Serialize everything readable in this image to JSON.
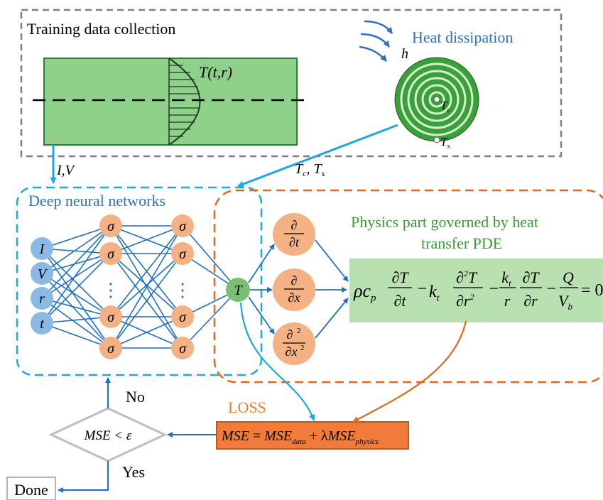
{
  "training": {
    "title": "Training data collection",
    "temp_profile": "T(t,r)",
    "inputs_IV": "I,V",
    "heat_label": "Heat dissipation",
    "h_label": "h",
    "core_label": "T",
    "core_sub": "c",
    "surface_label": "T",
    "surface_sub": "s",
    "tcts_a": "T",
    "tcts_a_sub": "c",
    "tcts_sep": ", T",
    "tcts_b_sub": "s"
  },
  "dnn": {
    "title": "Deep neural networks",
    "inputs": [
      "I",
      "V",
      "r",
      "t"
    ],
    "neuron_symbol": "σ",
    "ellipsis": "⋮",
    "output": "T"
  },
  "physics": {
    "title_line1": "Physics part governed by heat",
    "title_line2": "transfer PDE",
    "partial": "∂",
    "d_t": "∂t",
    "d_x": "∂x",
    "d_x2": "∂x",
    "d_x2_sup": "2",
    "pde": {
      "rho_c": "ρc",
      "p_sub": "p",
      "dT": "∂T",
      "dt": "∂t",
      "minus": "−",
      "kt": "k",
      "t_sub": "t",
      "d2T_num": "∂",
      "d2T_sup": "2",
      "d2T_T": "T",
      "dr2": "∂r",
      "dr2_sup": "2",
      "r": "r",
      "dr": "∂r",
      "Q": "Q",
      "Vb": "V",
      "b_sub": "b",
      "eq0": "= 0"
    }
  },
  "loss": {
    "title": "LOSS",
    "mse": "MSE",
    "eq": " = ",
    "mse_data": "MSE",
    "data_sub": "data",
    "plus_lambda": " + λ",
    "mse_phys": "MSE",
    "phys_sub": "physics"
  },
  "decision": {
    "condition": "MSE < ε",
    "no": "No",
    "yes": "Yes",
    "done": "Done"
  },
  "colors": {
    "dashed_gray": "#7f7f7f",
    "dnn_border": "#1ea8e0",
    "physics_border": "#e06a1c",
    "cylinder_fill": "#8fd08a",
    "cylinder_stroke": "#2e7d32",
    "input_node": "#8ab9e6",
    "hidden_node": "#f4b183",
    "output_node": "#77c06f",
    "pde_fill": "#b9e0b0",
    "loss_fill": "#f07b3a",
    "arrow_blue": "#1f6fc4",
    "heat_blue": "#2e6fc2",
    "title_blue": "#2e6fc2",
    "physics_green": "#3a9a3a",
    "loss_orange": "#ee7a2b"
  }
}
